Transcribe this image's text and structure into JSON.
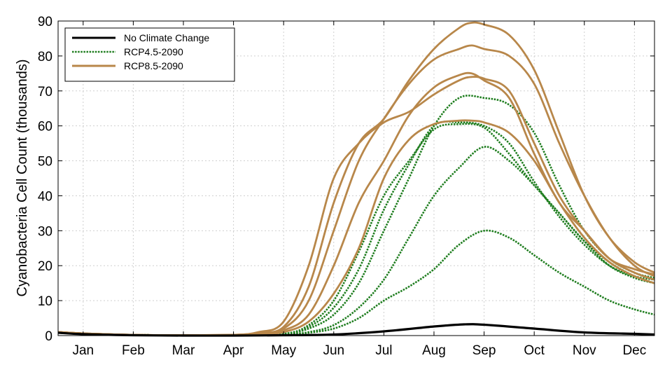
{
  "chart_data": {
    "type": "line",
    "title": "",
    "xlabel": "",
    "ylabel": "Cyanobacteria Cell Count (thousands)",
    "x_tick_labels": [
      "Jan",
      "Feb",
      "Mar",
      "Apr",
      "May",
      "Jun",
      "Jul",
      "Aug",
      "Sep",
      "Oct",
      "Nov",
      "Dec"
    ],
    "x_unit": "month (1 = Jan ... 12 = Dec)",
    "xlim": [
      0.5,
      12.4
    ],
    "ylim": [
      0,
      90
    ],
    "y_ticks": [
      0,
      10,
      20,
      30,
      40,
      50,
      60,
      70,
      80,
      90
    ],
    "grid": true,
    "legend_position": "top-left",
    "colors": {
      "No Climate Change": "#000000",
      "RCP4.5-2090": "#1e7d1e",
      "RCP8.5-2090": "#b8874a"
    },
    "legend": [
      {
        "label": "No Climate Change",
        "color": "#000000",
        "style": "solid"
      },
      {
        "label": "RCP4.5-2090",
        "color": "#1e7d1e",
        "style": "dotted"
      },
      {
        "label": "RCP8.5-2090",
        "color": "#b8874a",
        "style": "solid"
      }
    ],
    "series": [
      {
        "group": "No Climate Change",
        "x": [
          0.5,
          1,
          2,
          3,
          4,
          5,
          6,
          7,
          8,
          8.6,
          9,
          10,
          11,
          12,
          12.4
        ],
        "y": [
          0.8,
          0.4,
          0.1,
          0,
          0,
          0.1,
          0.3,
          1.2,
          2.6,
          3.2,
          3.1,
          2,
          0.9,
          0.5,
          0.3
        ]
      },
      {
        "group": "RCP4.5-2090",
        "x": [
          0.5,
          1,
          2,
          3,
          4,
          5,
          5.5,
          6,
          6.5,
          7,
          7.5,
          8,
          8.5,
          9,
          9.5,
          10,
          10.5,
          11,
          11.5,
          12,
          12.4
        ],
        "y": [
          0.8,
          0.5,
          0.2,
          0.1,
          0.1,
          0.5,
          3,
          10,
          24,
          40,
          50,
          59,
          60.5,
          59.5,
          52,
          43,
          35,
          27,
          20,
          16.5,
          15
        ]
      },
      {
        "group": "RCP4.5-2090",
        "x": [
          0.5,
          1,
          2,
          3,
          4,
          5,
          5.5,
          6,
          6.5,
          7,
          7.5,
          8,
          8.5,
          9,
          9.5,
          10,
          10.5,
          11,
          11.5,
          12,
          12.4
        ],
        "y": [
          0.8,
          0.5,
          0.2,
          0.1,
          0.1,
          0.5,
          2.5,
          8,
          19,
          36,
          49,
          60,
          61,
          60,
          55,
          44,
          34,
          26,
          20,
          17,
          16
        ]
      },
      {
        "group": "RCP4.5-2090",
        "x": [
          0.5,
          1,
          2,
          3,
          4,
          5,
          5.5,
          6,
          6.5,
          7,
          7.5,
          8,
          8.5,
          9,
          9.5,
          10,
          10.5,
          11,
          11.5,
          12,
          12.4
        ],
        "y": [
          0.8,
          0.5,
          0.2,
          0.1,
          0.1,
          0.5,
          2,
          6,
          15,
          30,
          45,
          60,
          68,
          68,
          66,
          58,
          43,
          30,
          22,
          18,
          16.5
        ]
      },
      {
        "group": "RCP4.5-2090",
        "x": [
          0.5,
          1,
          2,
          3,
          4,
          5,
          5.5,
          6,
          6.5,
          7,
          7.5,
          8,
          8.5,
          9,
          9.5,
          10,
          10.5,
          11,
          11.5,
          12,
          12.4
        ],
        "y": [
          0.8,
          0.5,
          0.2,
          0.1,
          0.1,
          0.3,
          1,
          3,
          8,
          16,
          28,
          40,
          48,
          54,
          50,
          43,
          35,
          27,
          21,
          17,
          15
        ]
      },
      {
        "group": "RCP4.5-2090",
        "x": [
          0.5,
          1,
          2,
          3,
          4,
          5,
          5.5,
          6,
          6.5,
          7,
          7.5,
          8,
          8.5,
          9,
          9.5,
          10,
          10.5,
          11,
          11.5,
          12,
          12.4
        ],
        "y": [
          0.8,
          0.5,
          0.2,
          0.1,
          0.1,
          0.2,
          0.8,
          2,
          5,
          10,
          14,
          19,
          26,
          30,
          28,
          23,
          18,
          14,
          10,
          7.5,
          6
        ]
      },
      {
        "group": "RCP8.5-2090",
        "x": [
          0.5,
          1,
          2,
          3,
          4,
          4.5,
          5,
          5.5,
          6,
          6.5,
          7,
          7.5,
          8,
          8.5,
          8.75,
          9,
          9.5,
          10,
          10.5,
          11,
          11.5,
          12,
          12.4
        ],
        "y": [
          1,
          0.6,
          0.2,
          0.1,
          0.2,
          1,
          4,
          20,
          45,
          55,
          61,
          64,
          69,
          73,
          74,
          73.5,
          70,
          55,
          40,
          30,
          22,
          19,
          17.5
        ]
      },
      {
        "group": "RCP8.5-2090",
        "x": [
          0.5,
          1,
          2,
          3,
          4,
          4.5,
          5,
          5.5,
          6,
          6.5,
          7,
          7.5,
          8,
          8.5,
          8.75,
          9,
          9.5,
          10,
          10.5,
          11,
          11.5,
          12,
          12.4
        ],
        "y": [
          1,
          0.6,
          0.2,
          0.1,
          0.2,
          0.8,
          2.5,
          14,
          38,
          55,
          62,
          73,
          82,
          88,
          89.5,
          89,
          86,
          76,
          58,
          40,
          28,
          21,
          18
        ]
      },
      {
        "group": "RCP8.5-2090",
        "x": [
          0.5,
          1,
          2,
          3,
          4,
          4.5,
          5,
          5.5,
          6,
          6.5,
          7,
          7.5,
          8,
          8.5,
          8.75,
          9,
          9.5,
          10,
          10.5,
          11,
          11.5,
          12,
          12.4
        ],
        "y": [
          1,
          0.6,
          0.2,
          0.1,
          0.2,
          0.6,
          2,
          10,
          30,
          50,
          62,
          72,
          79,
          82,
          83,
          82,
          80,
          72,
          55,
          40,
          28,
          20,
          17
        ]
      },
      {
        "group": "RCP8.5-2090",
        "x": [
          0.5,
          1,
          2,
          3,
          4,
          4.5,
          5,
          5.5,
          6,
          6.5,
          7,
          7.5,
          8,
          8.5,
          8.75,
          9,
          9.5,
          10,
          10.5,
          11,
          11.5,
          12,
          12.4
        ],
        "y": [
          1,
          0.6,
          0.2,
          0.1,
          0.2,
          0.5,
          1.5,
          6,
          20,
          38,
          50,
          63,
          71,
          74.5,
          75,
          73,
          68,
          52,
          38,
          30,
          22,
          18,
          16
        ]
      },
      {
        "group": "RCP8.5-2090",
        "x": [
          0.5,
          1,
          2,
          3,
          4,
          4.5,
          5,
          5.5,
          6,
          6.5,
          7,
          7.5,
          8,
          8.5,
          8.75,
          9,
          9.5,
          10,
          10.5,
          11,
          11.5,
          12,
          12.4
        ],
        "y": [
          1,
          0.6,
          0.2,
          0.1,
          0.2,
          0.4,
          1,
          4,
          12,
          25,
          45,
          56,
          60.5,
          61.5,
          61.5,
          61,
          58,
          50,
          38,
          28,
          21,
          17,
          15
        ]
      }
    ]
  }
}
